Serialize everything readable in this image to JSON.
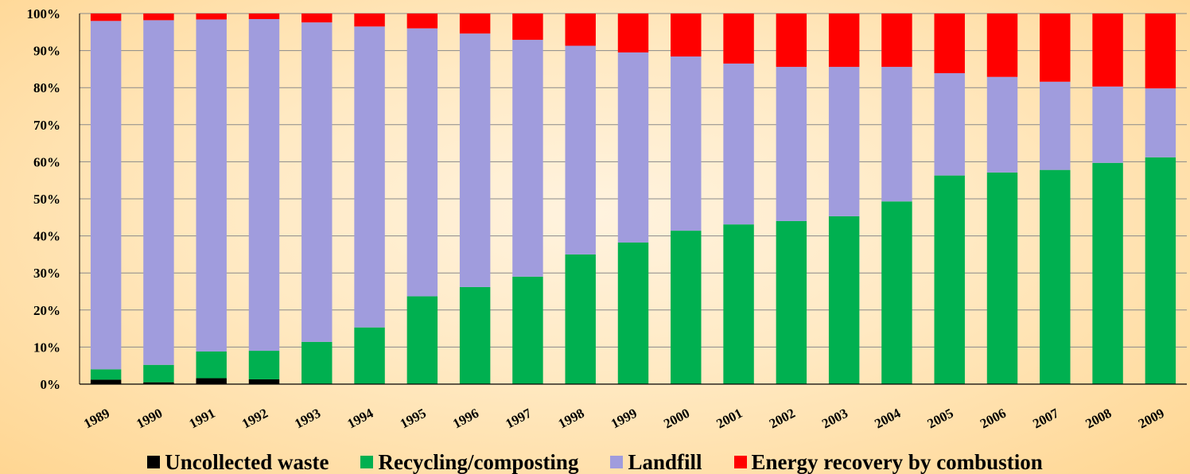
{
  "chart_data": {
    "type": "bar",
    "stacked": true,
    "percent_stacked": true,
    "categories": [
      "1989",
      "1990",
      "1991",
      "1992",
      "1993",
      "1994",
      "1995",
      "1996",
      "1997",
      "1998",
      "1999",
      "2000",
      "2001",
      "2002",
      "2003",
      "2004",
      "2005",
      "2006",
      "2007",
      "2008",
      "2009"
    ],
    "series": [
      {
        "name": "Uncollected waste",
        "color": "#000000",
        "values": [
          1.2,
          0.5,
          1.6,
          1.3,
          0,
          0,
          0,
          0,
          0,
          0,
          0,
          0,
          0,
          0,
          0,
          0,
          0,
          0,
          0,
          0,
          0
        ]
      },
      {
        "name": "Recycling/composting",
        "color": "#00b050",
        "values": [
          2.8,
          4.7,
          7.2,
          7.7,
          11.4,
          15.3,
          23.7,
          26.2,
          29.0,
          35.0,
          38.2,
          41.4,
          43.1,
          44.0,
          45.3,
          49.3,
          56.3,
          57.1,
          57.8,
          59.7,
          61.2
        ]
      },
      {
        "name": "Landfill",
        "color": "#a09cdd",
        "values": [
          94.0,
          93.0,
          89.6,
          89.5,
          86.2,
          81.2,
          72.3,
          68.4,
          63.9,
          56.3,
          51.3,
          47.0,
          43.4,
          41.6,
          40.3,
          36.3,
          27.6,
          25.8,
          23.8,
          20.6,
          18.6
        ]
      },
      {
        "name": "Energy recovery by combustion",
        "color": "#ff0000",
        "values": [
          2.0,
          1.8,
          1.6,
          1.5,
          2.4,
          3.5,
          4.0,
          5.4,
          7.1,
          8.7,
          10.5,
          11.6,
          13.5,
          14.4,
          14.4,
          14.4,
          16.1,
          17.1,
          18.4,
          19.7,
          20.2
        ]
      }
    ],
    "y_ticks": [
      "0%",
      "10%",
      "20%",
      "30%",
      "40%",
      "50%",
      "60%",
      "70%",
      "80%",
      "90%",
      "100%"
    ],
    "ylim": [
      0,
      100
    ],
    "title": "",
    "xlabel": "",
    "ylabel": "",
    "grid": true,
    "legend_position": "bottom"
  }
}
